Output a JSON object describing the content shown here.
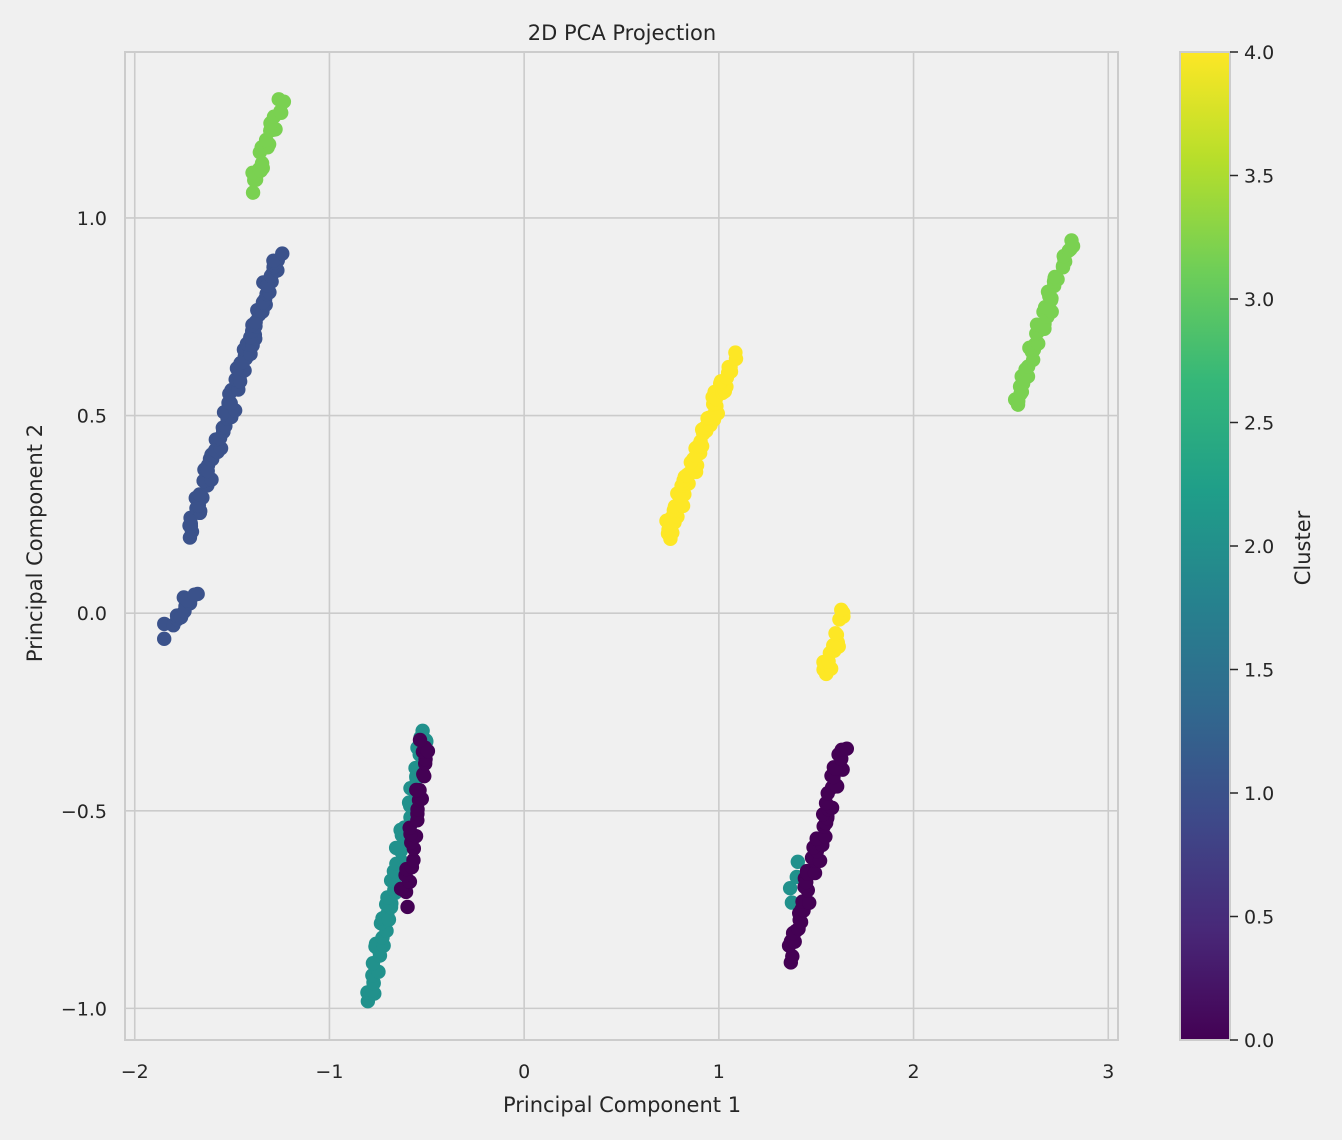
{
  "chart_data": {
    "type": "scatter",
    "title": "2D PCA Projection",
    "xlabel": "Principal Component 1",
    "ylabel": "Principal Component 2",
    "xlim": [
      -2.05,
      3.05
    ],
    "ylim": [
      -1.08,
      1.42
    ],
    "xticks": [
      {
        "value": -2,
        "label": "−2"
      },
      {
        "value": -1,
        "label": "−1"
      },
      {
        "value": 0,
        "label": "0"
      },
      {
        "value": 1,
        "label": "1"
      },
      {
        "value": 2,
        "label": "2"
      },
      {
        "value": 3,
        "label": "3"
      }
    ],
    "yticks": [
      {
        "value": -1.0,
        "label": "−1.0"
      },
      {
        "value": -0.5,
        "label": "−0.5"
      },
      {
        "value": 0.0,
        "label": "0.0"
      },
      {
        "value": 0.5,
        "label": "0.5"
      },
      {
        "value": 1.0,
        "label": "1.0"
      }
    ],
    "grid": true,
    "colormap": "viridis",
    "clusters": [
      {
        "cluster": 3,
        "color": "#7ad151",
        "segments": [
          {
            "x0": -1.4,
            "y0": 1.07,
            "x1": -1.25,
            "y1": 1.3,
            "n": 22
          },
          {
            "x0": 2.52,
            "y0": 0.53,
            "x1": 2.81,
            "y1": 0.94,
            "n": 45
          }
        ]
      },
      {
        "cluster": 1,
        "color": "#3b528b",
        "segments": [
          {
            "x0": -1.72,
            "y0": 0.2,
            "x1": -1.26,
            "y1": 0.91,
            "n": 90
          },
          {
            "x0": -1.84,
            "y0": -0.05,
            "x1": -1.69,
            "y1": 0.06,
            "n": 14
          }
        ]
      },
      {
        "cluster": 4,
        "color": "#fde725",
        "segments": [
          {
            "x0": 0.73,
            "y0": 0.19,
            "x1": 1.07,
            "y1": 0.65,
            "n": 70
          },
          {
            "x0": 1.54,
            "y0": -0.15,
            "x1": 1.65,
            "y1": 0.0,
            "n": 16
          }
        ]
      },
      {
        "cluster": 2,
        "color": "#21918c",
        "segments": [
          {
            "x0": -0.8,
            "y0": -0.98,
            "x1": -0.51,
            "y1": -0.3,
            "n": 60
          },
          {
            "x0": 1.37,
            "y0": -0.73,
            "x1": 1.42,
            "y1": -0.63,
            "n": 4
          }
        ]
      },
      {
        "cluster": 0,
        "color": "#440154",
        "segments": [
          {
            "x0": -0.62,
            "y0": -0.73,
            "x1": -0.51,
            "y1": -0.32,
            "n": 30
          },
          {
            "x0": 1.37,
            "y0": -0.87,
            "x1": 1.64,
            "y1": -0.34,
            "n": 55
          }
        ]
      }
    ],
    "colorbar": {
      "label": "Cluster",
      "min": 0,
      "max": 4,
      "ticks": [
        {
          "value": 0.0,
          "label": "0.0"
        },
        {
          "value": 0.5,
          "label": "0.5"
        },
        {
          "value": 1.0,
          "label": "1.0"
        },
        {
          "value": 1.5,
          "label": "1.5"
        },
        {
          "value": 2.0,
          "label": "2.0"
        },
        {
          "value": 2.5,
          "label": "2.5"
        },
        {
          "value": 3.0,
          "label": "3.0"
        },
        {
          "value": 3.5,
          "label": "3.5"
        },
        {
          "value": 4.0,
          "label": "4.0"
        }
      ],
      "stops": [
        "#440154",
        "#482878",
        "#3e4989",
        "#31688e",
        "#26828e",
        "#1f9e89",
        "#35b779",
        "#6ece58",
        "#b5de2b",
        "#fde725"
      ]
    },
    "colors": {
      "figure_background": "#f0f0f0",
      "axes_background": "#f0f0f0",
      "grid": "#cbcbcb",
      "spine": "#cccccc"
    }
  }
}
